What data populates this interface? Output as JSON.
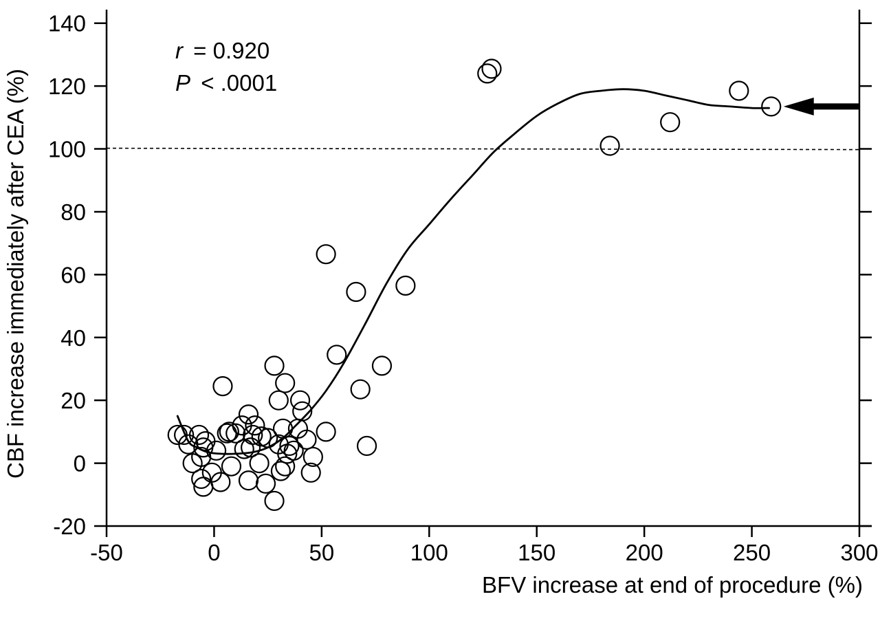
{
  "chart_data": {
    "type": "scatter",
    "xlabel": "BFV increase at end of procedure (%)",
    "ylabel": "CBF increase immediately after CEA (%)",
    "xlim": [
      -50,
      300
    ],
    "ylim": [
      -20,
      140
    ],
    "x_ticks": [
      -50,
      0,
      50,
      100,
      150,
      200,
      250,
      300
    ],
    "x_tick_labels": [
      "-50",
      "0",
      "50",
      "100",
      "150",
      "200",
      "250",
      "300"
    ],
    "y_ticks": [
      -20,
      0,
      20,
      40,
      60,
      80,
      100,
      120,
      140
    ],
    "y_tick_labels": [
      "-20",
      "0",
      "20",
      "40",
      "60",
      "80",
      "100",
      "120",
      "140"
    ],
    "grid": false,
    "annotations": {
      "r_symbol": "r",
      "r_value": "= 0.920",
      "p_symbol": "P",
      "p_value": "< .0001"
    },
    "reference_line": {
      "y": 100,
      "style": "dashed"
    },
    "arrow_points_to": {
      "x": 259,
      "y": 113.5
    },
    "points": [
      [
        -17,
        9
      ],
      [
        -14,
        9
      ],
      [
        -12,
        6
      ],
      [
        -10,
        0
      ],
      [
        -7,
        9
      ],
      [
        -6,
        2
      ],
      [
        -6,
        -5
      ],
      [
        -5,
        5
      ],
      [
        -5,
        -7.5
      ],
      [
        -4,
        7
      ],
      [
        -1,
        -3
      ],
      [
        1,
        4
      ],
      [
        3,
        -6
      ],
      [
        4,
        24.5
      ],
      [
        6,
        9.5
      ],
      [
        7,
        10
      ],
      [
        8,
        -1
      ],
      [
        10,
        9.5
      ],
      [
        13,
        12
      ],
      [
        14,
        4.5
      ],
      [
        16,
        15.5
      ],
      [
        16,
        -5.5
      ],
      [
        17,
        5
      ],
      [
        18,
        9
      ],
      [
        19,
        12
      ],
      [
        21,
        0
      ],
      [
        22,
        8.5
      ],
      [
        24,
        -6.5
      ],
      [
        25,
        8
      ],
      [
        28,
        31
      ],
      [
        28,
        -12
      ],
      [
        30,
        20
      ],
      [
        30,
        6
      ],
      [
        31,
        -2.5
      ],
      [
        32,
        11
      ],
      [
        33,
        -1
      ],
      [
        33,
        25.5
      ],
      [
        34,
        3
      ],
      [
        35,
        5.5
      ],
      [
        37,
        4
      ],
      [
        39,
        11
      ],
      [
        40,
        20
      ],
      [
        41,
        16.5
      ],
      [
        43,
        7.5
      ],
      [
        45,
        -3
      ],
      [
        46,
        2
      ],
      [
        52,
        10
      ],
      [
        52,
        66.5
      ],
      [
        57,
        34.5
      ],
      [
        66,
        54.5
      ],
      [
        68,
        23.5
      ],
      [
        71,
        5.5
      ],
      [
        78,
        31
      ],
      [
        89,
        56.5
      ],
      [
        127,
        124
      ],
      [
        129,
        125.5
      ],
      [
        184,
        101
      ],
      [
        212,
        108.5
      ],
      [
        244,
        118.5
      ],
      [
        259,
        113.5
      ]
    ],
    "fit_curve": [
      [
        -17,
        15
      ],
      [
        -12,
        7
      ],
      [
        -8,
        5
      ],
      [
        -3,
        3.5
      ],
      [
        3,
        3
      ],
      [
        10,
        3
      ],
      [
        18,
        3.5
      ],
      [
        25,
        5
      ],
      [
        32,
        8
      ],
      [
        38,
        12
      ],
      [
        45,
        17
      ],
      [
        52,
        23
      ],
      [
        60,
        31.5
      ],
      [
        70,
        44
      ],
      [
        80,
        57
      ],
      [
        90,
        68
      ],
      [
        100,
        76
      ],
      [
        110,
        84
      ],
      [
        120,
        91.5
      ],
      [
        130,
        99
      ],
      [
        140,
        105
      ],
      [
        150,
        110.5
      ],
      [
        160,
        114.5
      ],
      [
        170,
        117.5
      ],
      [
        180,
        118.5
      ],
      [
        190,
        119
      ],
      [
        200,
        118.5
      ],
      [
        210,
        117
      ],
      [
        220,
        115.5
      ],
      [
        230,
        114
      ],
      [
        240,
        113.5
      ],
      [
        250,
        113
      ],
      [
        258,
        113
      ]
    ]
  }
}
